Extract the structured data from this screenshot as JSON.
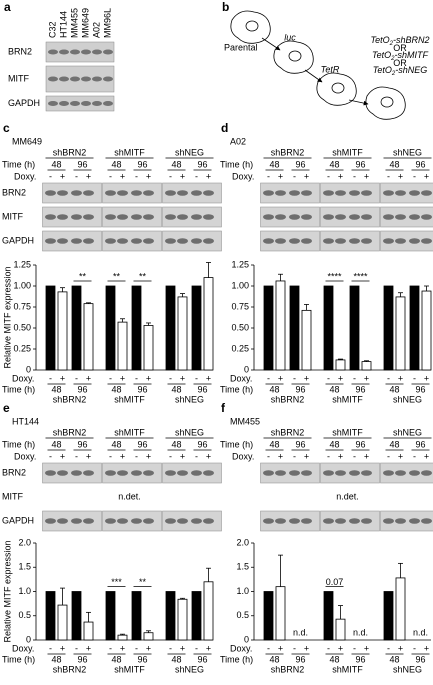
{
  "panel_a": {
    "label": "a",
    "columns": [
      "C32",
      "HT144",
      "MM455",
      "MM649",
      "A02",
      "MM96L"
    ],
    "rows": [
      "BRN2",
      "MITF",
      "GAPDH"
    ]
  },
  "panel_b": {
    "label": "b",
    "steps": [
      "Parental",
      "luc",
      "TetR"
    ],
    "constructs": [
      {
        "prefix": "TetO",
        "sub": "2",
        "suffix": "-shBRN2"
      },
      {
        "prefix": "TetO",
        "sub": "2",
        "suffix": "-shMITF"
      },
      {
        "prefix": "TetO",
        "sub": "2",
        "suffix": "-shNEG"
      }
    ],
    "separator": "OR"
  },
  "blots": [
    {
      "label": "c",
      "cell_line": "MM649",
      "time_header": "Time (h)",
      "doxy_header": "Doxy.",
      "groups": [
        "shBRN2",
        "shMITF",
        "shNEG"
      ],
      "times": [
        "48",
        "96",
        "48",
        "96",
        "48",
        "96"
      ],
      "doxy": [
        "-",
        "+",
        "-",
        "+",
        "-",
        "+",
        "-",
        "+",
        "-",
        "+",
        "-",
        "+"
      ],
      "rows": [
        "BRN2",
        "MITF",
        "GAPDH"
      ],
      "row_notes": [
        null,
        null,
        null
      ]
    },
    {
      "label": "d",
      "cell_line": "A02",
      "time_header": "Time (h)",
      "doxy_header": "Doxy.",
      "groups": [
        "shBRN2",
        "shMITF",
        "shNEG"
      ],
      "times": [
        "48",
        "96",
        "48",
        "96",
        "48",
        "96"
      ],
      "doxy": [
        "-",
        "+",
        "-",
        "+",
        "-",
        "+",
        "-",
        "+",
        "-",
        "+",
        "-",
        "+"
      ],
      "row_notes": [
        null,
        null,
        null
      ]
    },
    {
      "label": "e",
      "cell_line": "HT144",
      "time_header": "Time (h)",
      "doxy_header": "Doxy.",
      "groups": [
        "shBRN2",
        "shMITF",
        "shNEG"
      ],
      "times": [
        "48",
        "96",
        "48",
        "96",
        "48",
        "96"
      ],
      "doxy": [
        "-",
        "+",
        "-",
        "+",
        "-",
        "+",
        "-",
        "+",
        "-",
        "+",
        "-",
        "+"
      ],
      "rows": [
        "BRN2",
        "MITF",
        "GAPDH"
      ],
      "row_notes": [
        null,
        "n.det.",
        null
      ]
    },
    {
      "label": "f",
      "cell_line": "MM455",
      "time_header": "Time (h)",
      "doxy_header": "Doxy.",
      "groups": [
        "shBRN2",
        "shMITF",
        "shNEG"
      ],
      "times": [
        "48",
        "96",
        "48",
        "96",
        "48",
        "96"
      ],
      "doxy": [
        "-",
        "+",
        "-",
        "+",
        "-",
        "+",
        "-",
        "+",
        "-",
        "+",
        "-",
        "+"
      ],
      "row_notes": [
        null,
        "n.det.",
        null
      ]
    }
  ],
  "chart_data": [
    {
      "type": "bar",
      "ylabel": "Relative MITF expression",
      "ylim": [
        0,
        1.25
      ],
      "yticks": [
        0,
        0.25,
        {
          "value": 0.5,
          "label": "0.50"
        },
        0.75,
        {
          "value": 1,
          "label": "1.00"
        },
        1.25
      ],
      "category_header": "Doxy.",
      "categories": [
        "-",
        "+",
        "-",
        "+",
        "-",
        "+",
        "-",
        "+",
        "-",
        "+",
        "-",
        "+"
      ],
      "time_header": "Time (h)",
      "times": [
        "48",
        "96",
        "48",
        "96",
        "48",
        "96"
      ],
      "groups": [
        "shBRN2",
        "shMITF",
        "shNEG"
      ],
      "values": [
        1,
        0.93,
        1,
        0.79,
        1,
        0.57,
        1,
        0.53,
        1,
        0.87,
        1,
        1.1
      ],
      "errors": [
        null,
        0.05,
        null,
        0.01,
        null,
        0.04,
        null,
        0.03,
        null,
        0.04,
        null,
        0.18
      ],
      "colors": [
        "#000000",
        "#ffffff"
      ],
      "pair_labels": [
        null,
        "**",
        "**",
        "**",
        null,
        null
      ]
    },
    {
      "type": "bar",
      "ylim": [
        0,
        1.25
      ],
      "yticks": [
        0,
        0.25,
        {
          "value": 0.5,
          "label": "0.50"
        },
        0.75,
        {
          "value": 1,
          "label": "1.00"
        },
        1.25
      ],
      "category_header": "Doxy.",
      "categories": [
        "-",
        "+",
        "-",
        "+",
        "-",
        "+",
        "-",
        "+",
        "-",
        "+",
        "-",
        "+"
      ],
      "time_header": "Time (h)",
      "times": [
        "48",
        "96",
        "48",
        "96",
        "48",
        "96"
      ],
      "groups": [
        "shBRN2",
        "shMITF",
        "shNEG"
      ],
      "values": [
        1,
        1.06,
        1,
        0.71,
        1,
        0.12,
        1,
        0.1,
        1,
        0.87,
        1,
        0.94
      ],
      "errors": [
        null,
        0.08,
        null,
        0.07,
        null,
        0.01,
        null,
        0.01,
        null,
        0.05,
        null,
        0.06
      ],
      "colors": [
        "#000000",
        "#ffffff"
      ],
      "pair_labels": [
        null,
        null,
        "****",
        "****",
        null,
        null
      ]
    },
    {
      "type": "bar",
      "ylabel": "Relative MITF expression",
      "ylim": [
        0,
        2
      ],
      "yticks": [
        0,
        0.5,
        {
          "value": 1,
          "label": "1.0"
        },
        1.5,
        {
          "value": 2,
          "label": "2.0"
        }
      ],
      "category_header": "Doxy.",
      "categories": [
        "-",
        "+",
        "-",
        "+",
        "-",
        "+",
        "-",
        "+",
        "-",
        "+",
        "-",
        "+"
      ],
      "time_header": "Time (h)",
      "times": [
        "48",
        "96",
        "48",
        "96",
        "48",
        "96"
      ],
      "groups": [
        "shBRN2",
        "shMITF",
        "shNEG"
      ],
      "values": [
        1,
        0.72,
        1,
        0.37,
        1,
        0.1,
        1,
        0.15,
        1,
        0.84,
        1,
        1.2
      ],
      "errors": [
        null,
        0.35,
        null,
        0.2,
        null,
        0.02,
        null,
        0.04,
        null,
        0.02,
        null,
        0.28
      ],
      "colors": [
        "#000000",
        "#ffffff"
      ],
      "pair_labels": [
        null,
        null,
        "***",
        "**",
        null,
        null
      ]
    },
    {
      "type": "bar",
      "ylim": [
        0,
        2
      ],
      "yticks": [
        0,
        0.5,
        {
          "value": 1,
          "label": "1.0"
        },
        1.5,
        {
          "value": 2,
          "label": "2.0"
        }
      ],
      "category_header": "Doxy.",
      "categories": [
        "-",
        "+",
        "-",
        "+",
        "-",
        "+",
        "-",
        "+",
        "-",
        "+",
        "-",
        "+"
      ],
      "time_header": "Time (h)",
      "times": [
        "48",
        "96",
        "48",
        "96",
        "48",
        "96"
      ],
      "groups": [
        "shBRN2",
        "shMITF",
        "shNEG"
      ],
      "values": [
        1,
        1.1,
        null,
        null,
        1,
        0.43,
        null,
        null,
        1,
        1.28,
        null,
        null
      ],
      "errors": [
        null,
        0.65,
        null,
        null,
        null,
        0.28,
        null,
        null,
        null,
        0.3,
        null,
        null
      ],
      "colors": [
        "#000000",
        "#ffffff"
      ],
      "pair_labels": [
        null,
        "n.d.",
        "0.07",
        "n.d.",
        null,
        "n.d."
      ]
    }
  ]
}
